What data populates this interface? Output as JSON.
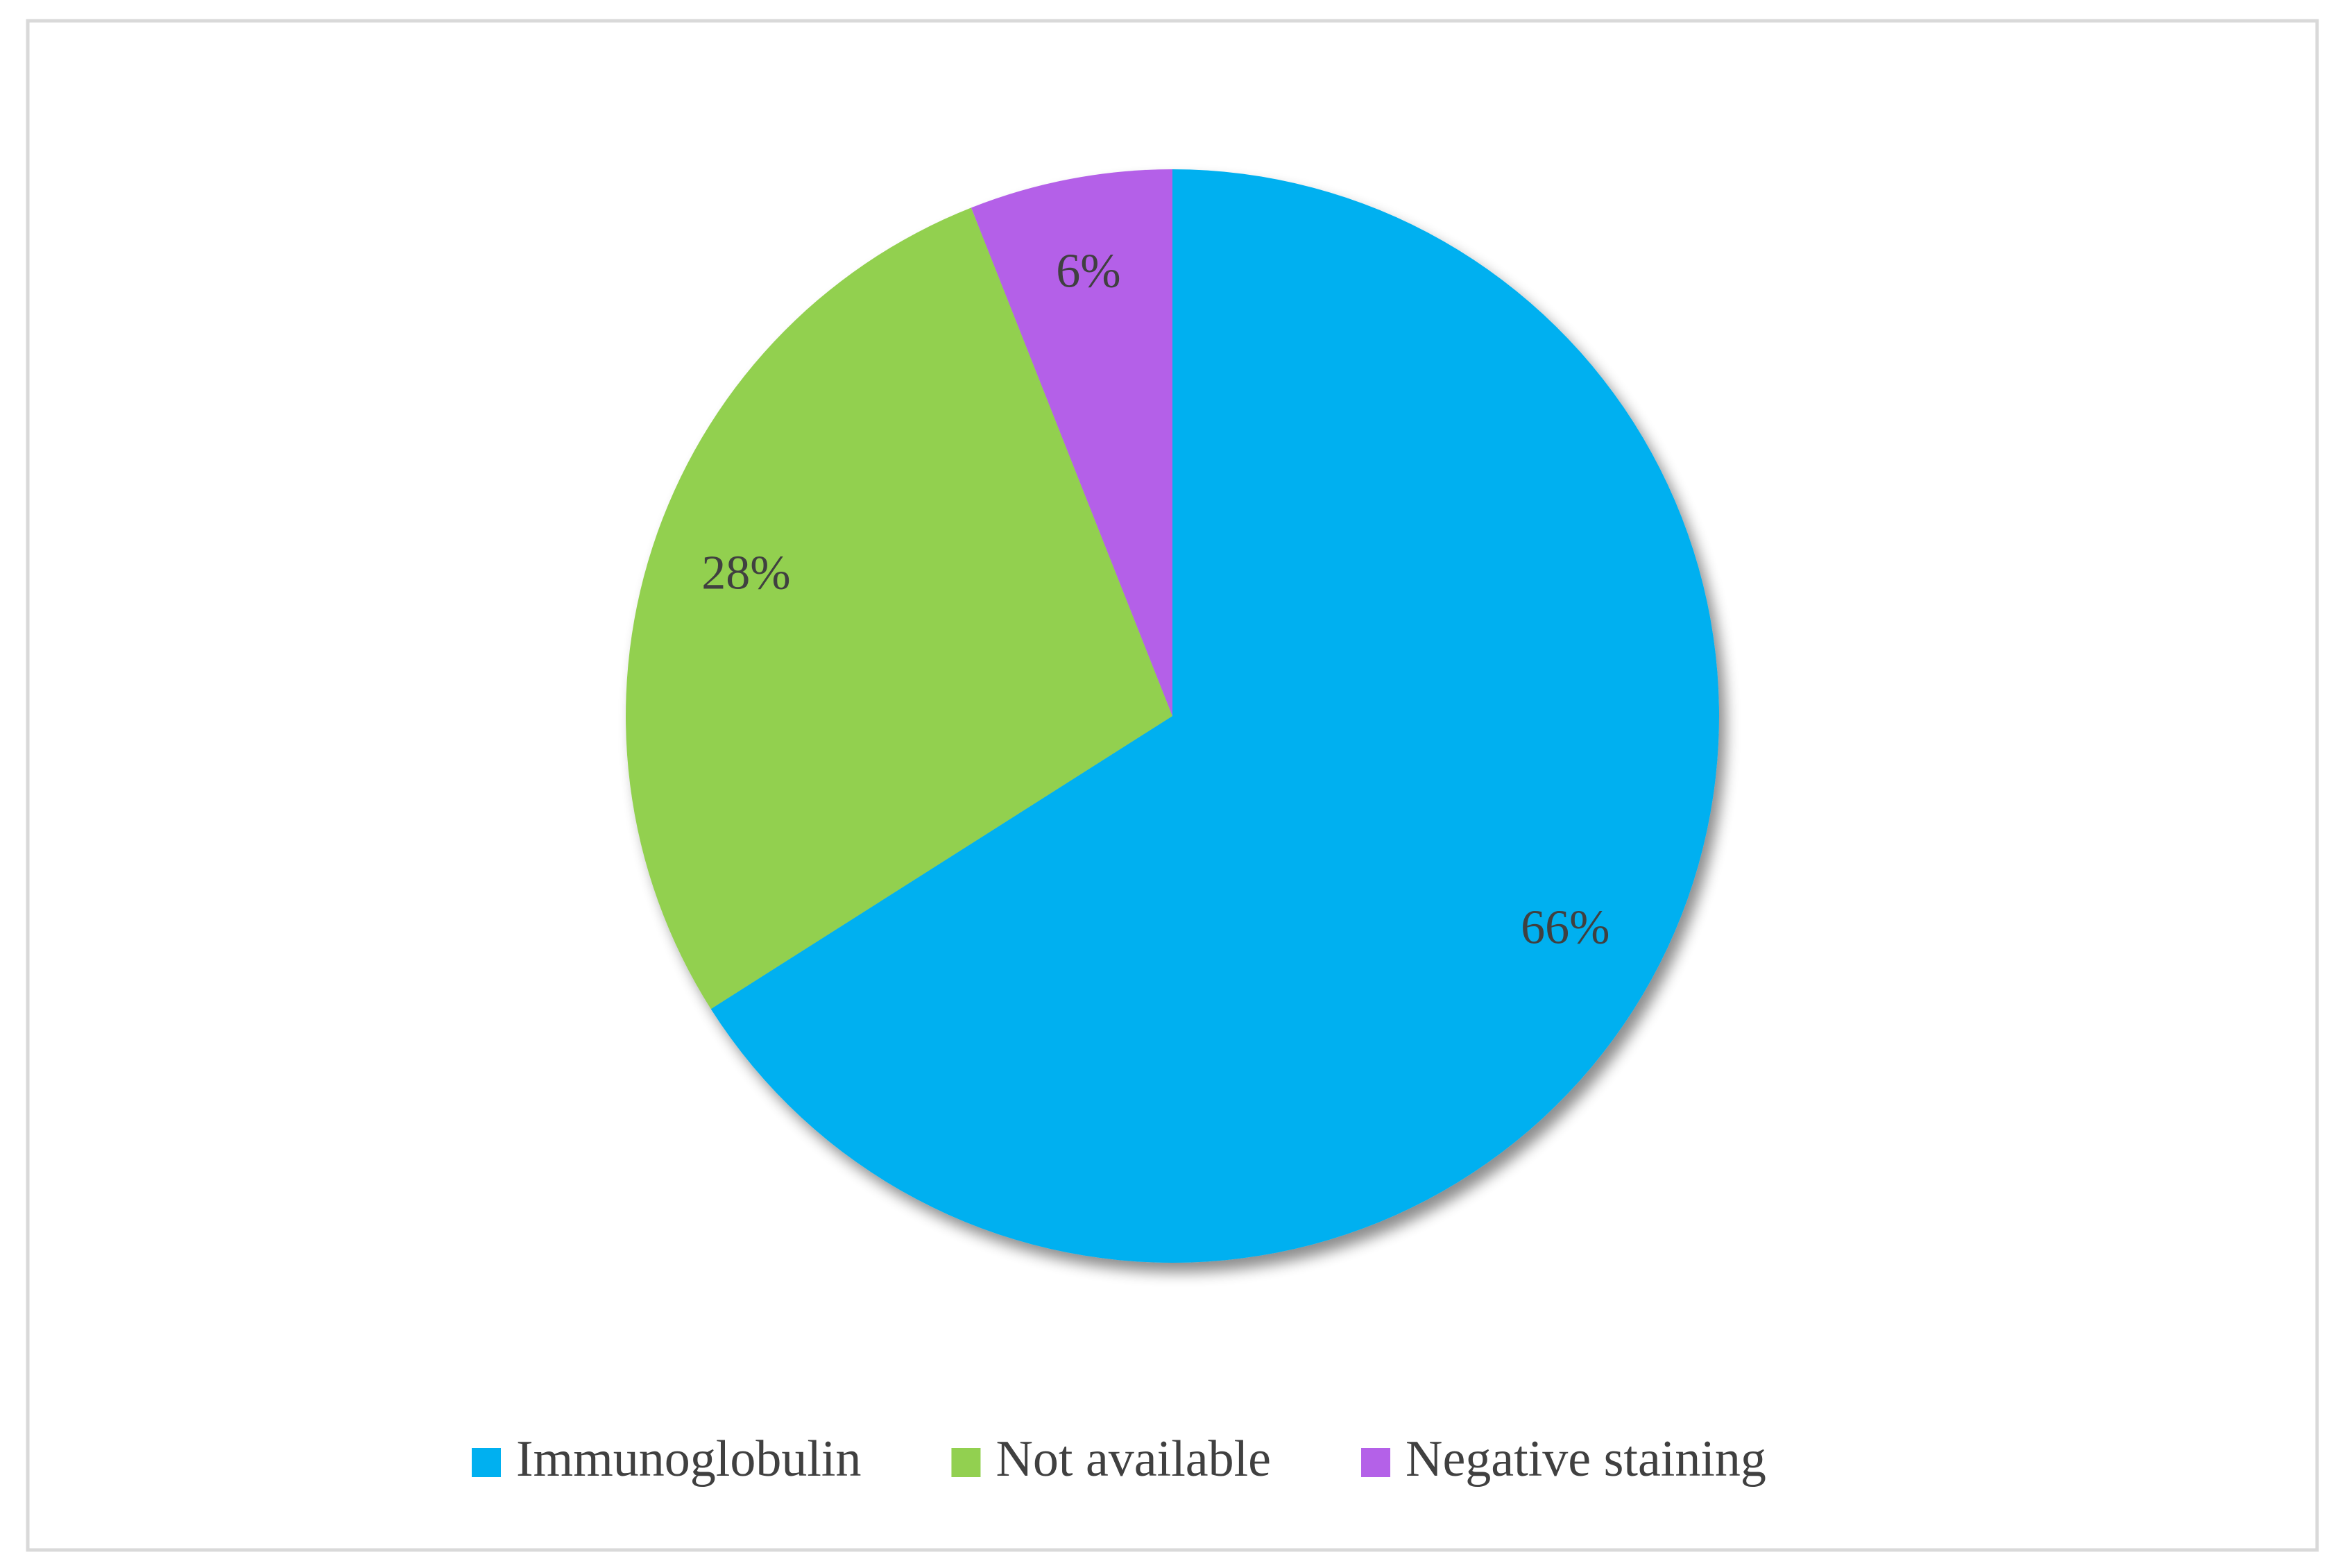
{
  "chart_data": {
    "type": "pie",
    "categories": [
      "Immunoglobulin",
      "Not available",
      "Negative staining"
    ],
    "values": [
      66,
      28,
      6
    ],
    "value_labels": [
      "66%",
      "28%",
      "6%"
    ],
    "colors": [
      "#00b0f0",
      "#92d050",
      "#b461e8"
    ],
    "legend": "bottom"
  }
}
